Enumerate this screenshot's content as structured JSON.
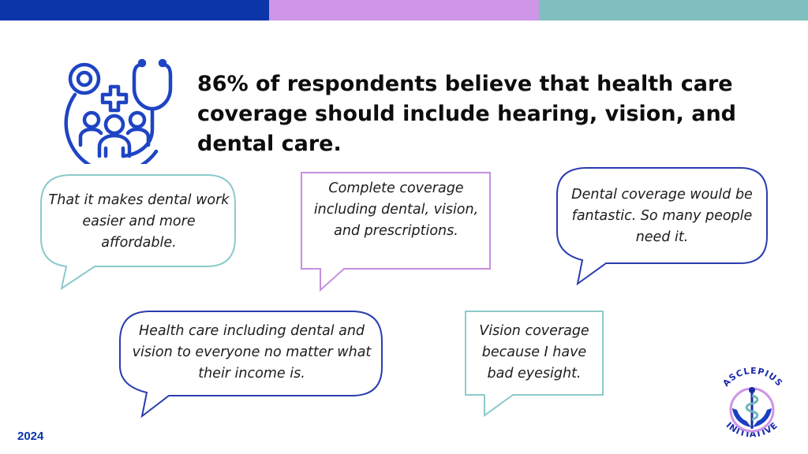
{
  "headline": "86% of respondents believe that health care coverage should include hearing, vision, and dental care.",
  "quotes": [
    "That it makes dental work easier and more affordable.",
    "Complete coverage including dental, vision, and prescriptions.",
    "Dental coverage would be fantastic. So many people need it.",
    "Health care including dental and vision to everyone no matter what their income is.",
    "Vision coverage because I have bad eyesight."
  ],
  "year": "2024",
  "logo": {
    "top_text": "ASCLEPIUS",
    "bottom_text": "INITIATIVE"
  },
  "colors": {
    "navy": "#0b35a8",
    "lavender": "#cf95e6",
    "teal": "#7fbfbf",
    "icon_blue": "#1e44c4"
  },
  "icons": [
    "health-care-group-icon",
    "stethoscope-icon",
    "medical-cross-icon",
    "caduceus-icon"
  ]
}
